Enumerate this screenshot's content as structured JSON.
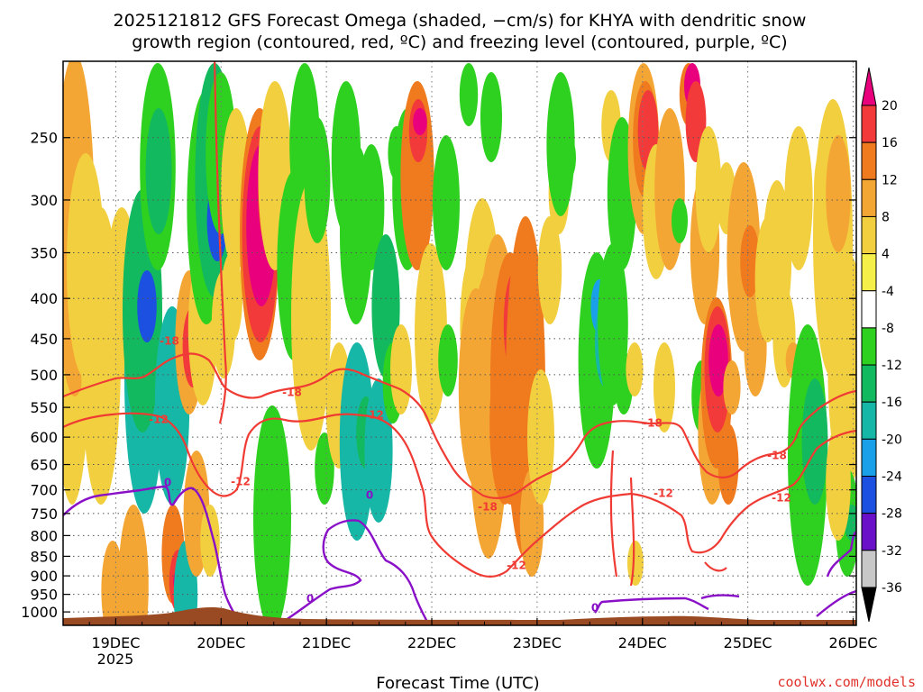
{
  "chart_data": {
    "type": "heatmap",
    "title_lines": [
      "2025121812 GFS Forecast Omega (shaded, −cm/s) for KHYA with dendritic snow",
      "growth region (contoured, red, ºC) and freezing level (contoured, purple, ºC)"
    ],
    "xlabel": "Forecast Time (UTC)",
    "x_ticks": [
      {
        "day": 19,
        "label": "19DEC"
      },
      {
        "day": 20,
        "label": "20DEC"
      },
      {
        "day": 21,
        "label": "21DEC"
      },
      {
        "day": 22,
        "label": "22DEC"
      },
      {
        "day": 23,
        "label": "23DEC"
      },
      {
        "day": 24,
        "label": "24DEC"
      },
      {
        "day": 25,
        "label": "25DEC"
      },
      {
        "day": 26,
        "label": "26DEC"
      }
    ],
    "x_year_label": "2025",
    "xlim_day": [
      18.5,
      26.0
    ],
    "y_scale": "log-pressure",
    "ylim_hpa": [
      1040,
      200
    ],
    "y_ticks": [
      250,
      300,
      350,
      400,
      450,
      500,
      550,
      600,
      650,
      700,
      750,
      800,
      850,
      900,
      950,
      1000
    ],
    "grid": true,
    "colorbar": {
      "levels": [
        20,
        16,
        12,
        8,
        4,
        -4,
        -8,
        -12,
        -16,
        -20,
        -24,
        -28,
        -32,
        -36
      ],
      "colors": [
        "#e8007c",
        "#f23a3a",
        "#f07a1e",
        "#f4a634",
        "#f2cf3e",
        "#f5ef4a",
        "#ffffff",
        "#2ed11f",
        "#13b95e",
        "#17b7a8",
        "#1aa0e8",
        "#1b50e0",
        "#6a10c8",
        "#8c18c0",
        "#c8c8c8",
        "#000000"
      ]
    },
    "surface_color": "#9a4a22",
    "contours": {
      "red": {
        "color": "#ef3b34",
        "labels": [
          "-18",
          "-12"
        ]
      },
      "purple": {
        "color": "#8a10c8",
        "labels": [
          "0"
        ]
      }
    },
    "credit": "coolwx.com/models"
  }
}
